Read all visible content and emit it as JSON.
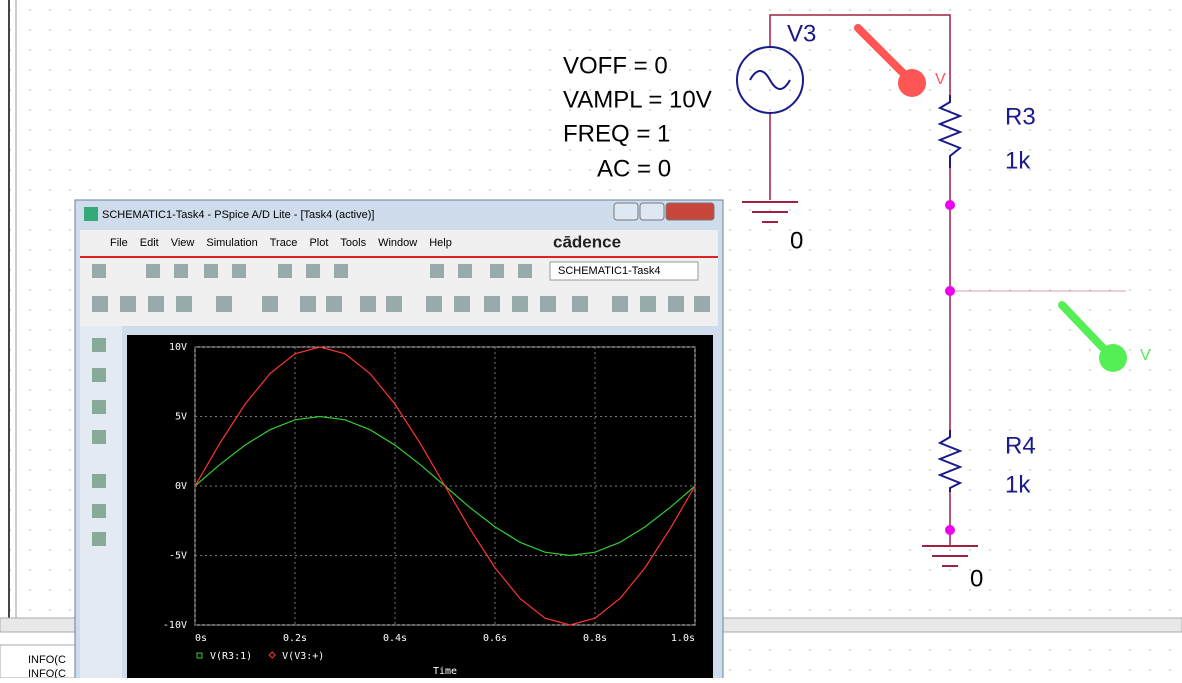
{
  "schematic": {
    "source": {
      "name": "V3",
      "params": [
        "VOFF = 0",
        "VAMPL = 10V",
        "FREQ = 1",
        "AC = 0"
      ]
    },
    "resistors": [
      {
        "name": "R3",
        "value": "1k"
      },
      {
        "name": "R4",
        "value": "1k"
      }
    ],
    "grounds": [
      "0",
      "0"
    ],
    "probes": [
      "V",
      "V"
    ]
  },
  "window": {
    "title": "SCHEMATIC1-Task4 - PSpice A/D Lite - [Task4 (active)]",
    "menu": [
      "File",
      "Edit",
      "View",
      "Simulation",
      "Trace",
      "Plot",
      "Tools",
      "Window",
      "Help"
    ],
    "brand": "cādence",
    "profile": "SCHEMATIC1-Task4"
  },
  "output": [
    "INFO(C",
    "INFO(C"
  ],
  "chart_data": {
    "type": "line",
    "x_label": "Time",
    "x": [
      0,
      0.05,
      0.1,
      0.15,
      0.2,
      0.25,
      0.3,
      0.35,
      0.4,
      0.45,
      0.5,
      0.55,
      0.6,
      0.65,
      0.7,
      0.75,
      0.8,
      0.85,
      0.9,
      0.95,
      1.0
    ],
    "series": [
      {
        "name": "V(R3:1)",
        "color": "#33cc33",
        "values": [
          0,
          1.55,
          2.94,
          4.05,
          4.76,
          5,
          4.76,
          4.05,
          2.94,
          1.55,
          0,
          -1.55,
          -2.94,
          -4.05,
          -4.76,
          -5,
          -4.76,
          -4.05,
          -2.94,
          -1.55,
          0
        ]
      },
      {
        "name": "V(V3:+)",
        "color": "#ff3333",
        "values": [
          0,
          3.09,
          5.88,
          8.09,
          9.51,
          10,
          9.51,
          8.09,
          5.88,
          3.09,
          0,
          -3.09,
          -5.88,
          -8.09,
          -9.51,
          -10,
          -9.51,
          -8.09,
          -5.88,
          -3.09,
          0
        ]
      }
    ],
    "xlim": [
      0,
      1.0
    ],
    "ylim": [
      -10,
      10
    ],
    "xticks": [
      {
        "value": 0,
        "label": "0s"
      },
      {
        "value": 0.2,
        "label": "0.2s"
      },
      {
        "value": 0.4,
        "label": "0.4s"
      },
      {
        "value": 0.6,
        "label": "0.6s"
      },
      {
        "value": 0.8,
        "label": "0.8s"
      },
      {
        "value": 1.0,
        "label": "1.0s"
      }
    ],
    "yticks": [
      {
        "value": 10,
        "label": "10V"
      },
      {
        "value": 5,
        "label": "5V"
      },
      {
        "value": 0,
        "label": "0V"
      },
      {
        "value": -5,
        "label": "-5V"
      },
      {
        "value": -10,
        "label": "-10V"
      }
    ],
    "grid": true
  }
}
